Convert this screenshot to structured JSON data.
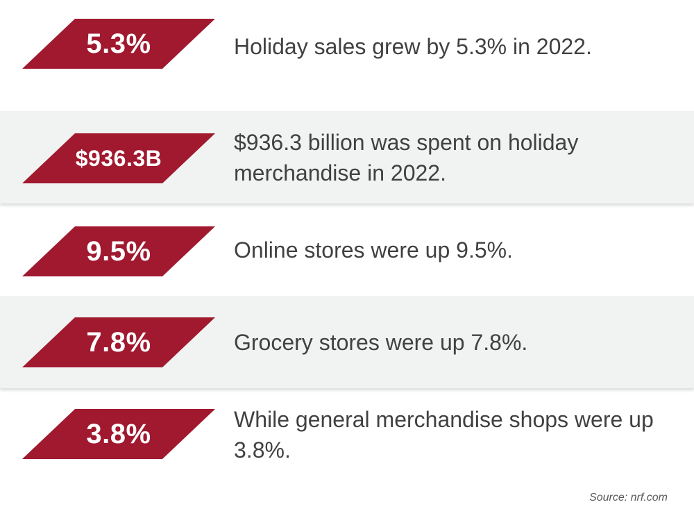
{
  "colors": {
    "badge": "#a0192f",
    "row_shade": "#f1f2f2",
    "text": "#414042"
  },
  "stats": [
    {
      "value": "5.3%",
      "text": "Holiday sales grew by 5.3% in 2022."
    },
    {
      "value": "$936.3B",
      "text": "$936.3 billion was spent on holiday merchandise in 2022."
    },
    {
      "value": "9.5%",
      "text": "Online stores were up 9.5%."
    },
    {
      "value": "7.8%",
      "text": "Grocery stores were up 7.8%."
    },
    {
      "value": "3.8%",
      "text": "While general merchandise shops were up 3.8%."
    }
  ],
  "source": "Source: nrf.com"
}
